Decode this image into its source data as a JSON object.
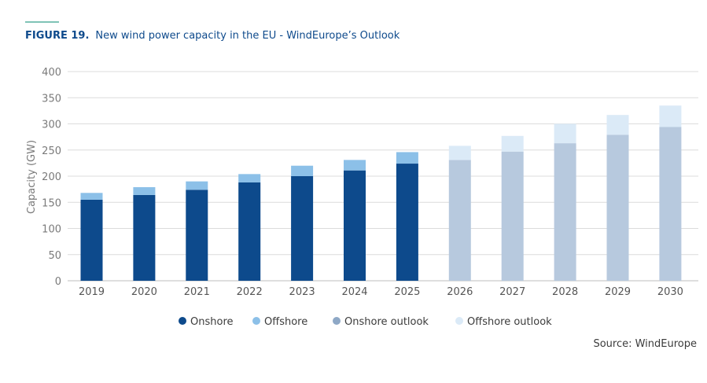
{
  "figure": {
    "label": "FIGURE 19.",
    "title": "New wind power capacity in the EU - WindEurope’s Outlook"
  },
  "source": "Source: WindEurope",
  "colors": {
    "onshore": "#0d4a8c",
    "offshore": "#8cc0e8",
    "onshore_outlook": "#b7c9de",
    "offshore_outlook": "#dbeaf7",
    "grid": "#dcdcdc",
    "axis_text": "#7a7a7a",
    "title": "#0e4a8c"
  },
  "chart_data": {
    "type": "bar",
    "stacked": true,
    "categories": [
      "2019",
      "2020",
      "2021",
      "2022",
      "2023",
      "2024",
      "2025",
      "2026",
      "2027",
      "2028",
      "2029",
      "2030"
    ],
    "series": [
      {
        "name": "Onshore",
        "values": [
          155,
          164,
          174,
          188,
          200,
          211,
          224,
          null,
          null,
          null,
          null,
          null
        ]
      },
      {
        "name": "Offshore",
        "values": [
          13,
          15,
          16,
          16,
          20,
          20,
          22,
          null,
          null,
          null,
          null,
          null
        ]
      },
      {
        "name": "Onshore outlook",
        "values": [
          null,
          null,
          null,
          null,
          null,
          null,
          null,
          231,
          247,
          263,
          279,
          294
        ]
      },
      {
        "name": "Offshore outlook",
        "values": [
          null,
          null,
          null,
          null,
          null,
          null,
          null,
          27,
          30,
          37,
          38,
          41
        ]
      }
    ],
    "ylabel": "Capacity (GW)",
    "xlabel": "",
    "ylim": [
      0,
      400
    ],
    "yticks": [
      "0",
      "50",
      "100",
      "150",
      "200",
      "250",
      "300",
      "350",
      "400"
    ],
    "grid": true,
    "legend": {
      "position": "bottom-center",
      "entries": [
        "Onshore",
        "Offshore",
        "Onshore outlook",
        "Offshore outlook"
      ]
    }
  }
}
